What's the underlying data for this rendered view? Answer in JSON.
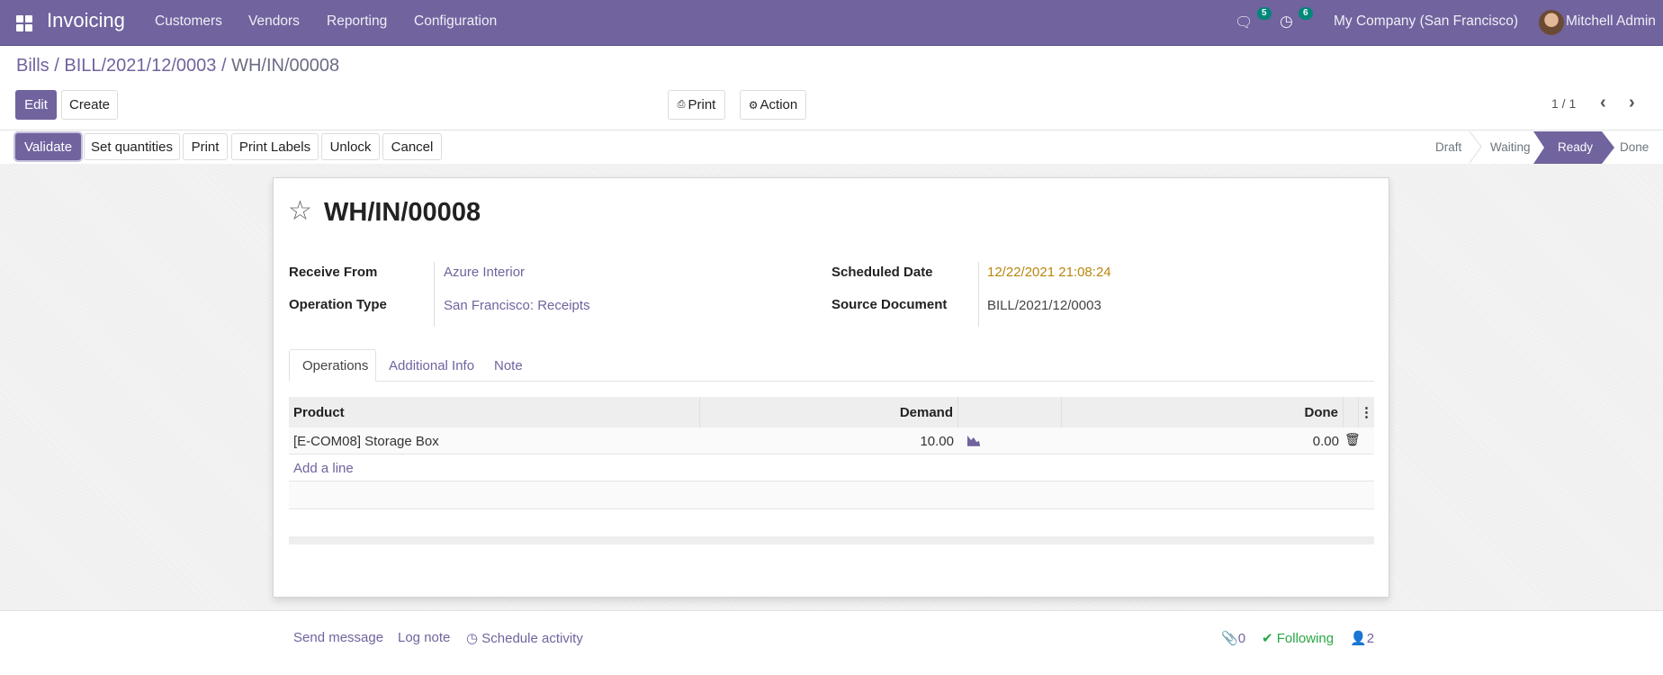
{
  "navbar": {
    "app_name": "Invoicing",
    "menu": [
      "Customers",
      "Vendors",
      "Reporting",
      "Configuration"
    ],
    "messages_count": "5",
    "activities_count": "6",
    "company": "My Company (San Francisco)",
    "user": "Mitchell Admin"
  },
  "breadcrumb": {
    "items": [
      "Bills",
      "BILL/2021/12/0003"
    ],
    "current": "WH/IN/00008",
    "separator": "/"
  },
  "control": {
    "edit": "Edit",
    "create": "Create",
    "print": "Print",
    "action": "Action",
    "pager": "1 / 1"
  },
  "statusbar": {
    "buttons": [
      "Validate",
      "Set quantities",
      "Print",
      "Print Labels",
      "Unlock",
      "Cancel"
    ],
    "stages": [
      "Draft",
      "Waiting",
      "Ready",
      "Done"
    ],
    "active_stage": "Ready"
  },
  "record": {
    "title": "WH/IN/00008",
    "fields": {
      "receive_from_label": "Receive From",
      "receive_from": "Azure Interior",
      "operation_type_label": "Operation Type",
      "operation_type": "San Francisco: Receipts",
      "scheduled_date_label": "Scheduled Date",
      "scheduled_date": "12/22/2021 21:08:24",
      "source_document_label": "Source Document",
      "source_document": "BILL/2021/12/0003"
    },
    "tabs": [
      "Operations",
      "Additional Info",
      "Note"
    ],
    "active_tab": "Operations",
    "table": {
      "headers": {
        "product": "Product",
        "demand": "Demand",
        "done": "Done"
      },
      "rows": [
        {
          "product": "[E-COM08] Storage Box",
          "demand": "10.00",
          "done": "0.00"
        }
      ],
      "add_line": "Add a line"
    }
  },
  "chatter": {
    "send_message": "Send message",
    "log_note": "Log note",
    "schedule_activity": "Schedule activity",
    "attachments": "0",
    "following": "Following",
    "followers": "2"
  },
  "colors": {
    "brand": "#71639e",
    "date_warning": "#b8860b",
    "following": "#28a745",
    "badge": "#00877a"
  }
}
